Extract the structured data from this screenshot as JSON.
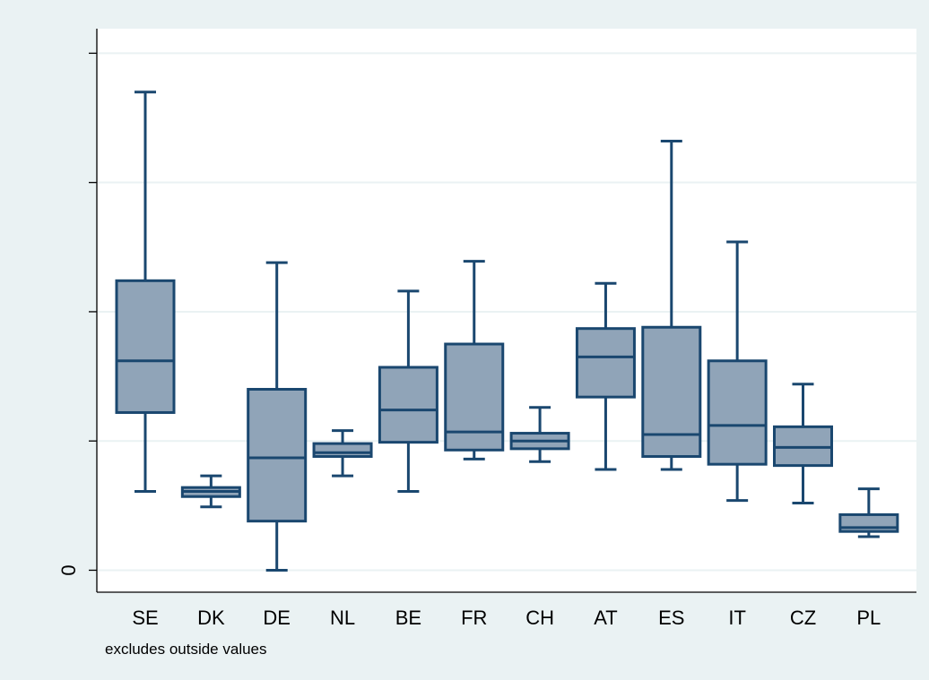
{
  "chart_data": {
    "type": "box",
    "title": "",
    "xlabel": "",
    "ylabel": "",
    "categories": [
      "SE",
      "DK",
      "DE",
      "NL",
      "BE",
      "FR",
      "CH",
      "AT",
      "ES",
      "IT",
      "CZ",
      "PL"
    ],
    "y_tick_labels": [
      {
        "value": 0,
        "label": "0"
      },
      {
        "value": 1,
        "label": ""
      },
      {
        "value": 2,
        "label": ""
      },
      {
        "value": 3,
        "label": ""
      },
      {
        "value": 4,
        "label": ""
      }
    ],
    "ylim": [
      -0.17,
      4.19
    ],
    "grid": true,
    "boxes": [
      {
        "category": "SE",
        "min": 0.61,
        "q1": 1.22,
        "median": 1.62,
        "q3": 2.24,
        "max": 3.7
      },
      {
        "category": "DK",
        "min": 0.49,
        "q1": 0.57,
        "median": 0.61,
        "q3": 0.64,
        "max": 0.73
      },
      {
        "category": "DE",
        "min": 0.0,
        "q1": 0.38,
        "median": 0.87,
        "q3": 1.4,
        "max": 2.38
      },
      {
        "category": "NL",
        "min": 0.73,
        "q1": 0.88,
        "median": 0.91,
        "q3": 0.98,
        "max": 1.08
      },
      {
        "category": "BE",
        "min": 0.61,
        "q1": 0.99,
        "median": 1.24,
        "q3": 1.57,
        "max": 2.16
      },
      {
        "category": "FR",
        "min": 0.86,
        "q1": 0.93,
        "median": 1.07,
        "q3": 1.75,
        "max": 2.39
      },
      {
        "category": "CH",
        "min": 0.84,
        "q1": 0.94,
        "median": 1.0,
        "q3": 1.06,
        "max": 1.26
      },
      {
        "category": "AT",
        "min": 0.78,
        "q1": 1.34,
        "median": 1.65,
        "q3": 1.87,
        "max": 2.22
      },
      {
        "category": "ES",
        "min": 0.78,
        "q1": 0.88,
        "median": 1.05,
        "q3": 1.88,
        "max": 3.32
      },
      {
        "category": "IT",
        "min": 0.54,
        "q1": 0.82,
        "median": 1.12,
        "q3": 1.62,
        "max": 2.54
      },
      {
        "category": "CZ",
        "min": 0.52,
        "q1": 0.81,
        "median": 0.95,
        "q3": 1.11,
        "max": 1.44
      },
      {
        "category": "PL",
        "min": 0.26,
        "q1": 0.3,
        "median": 0.33,
        "q3": 0.43,
        "max": 0.63
      }
    ],
    "note": "excludes outside values",
    "colors": {
      "background": "#eaf2f3",
      "plot_background": "#ffffff",
      "grid": "#eaf2f3",
      "box_fill": "#90a4b8",
      "box_stroke": "#1a476f",
      "axis": "#000000"
    }
  }
}
